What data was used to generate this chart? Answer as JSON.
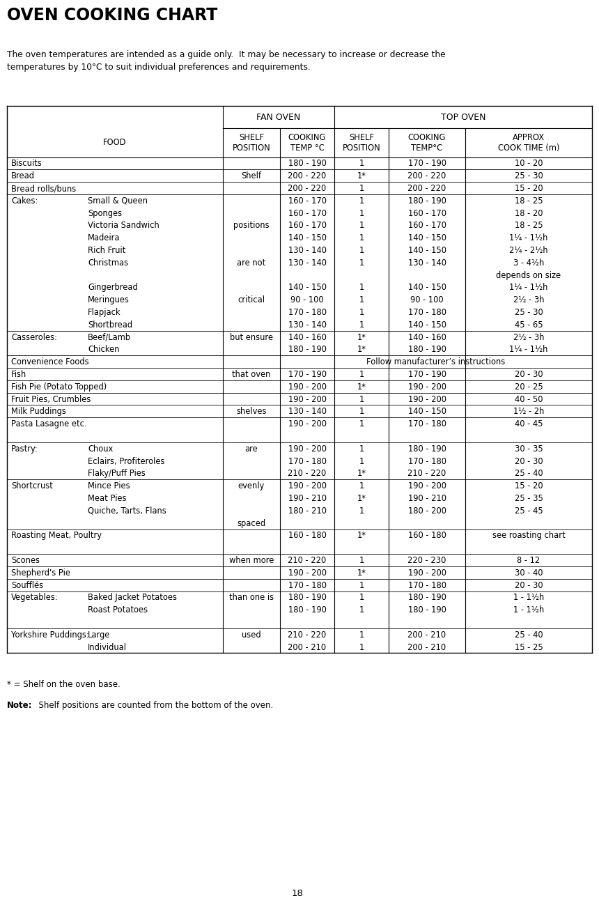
{
  "title": "OVEN COOKING CHART",
  "subtitle_line1": "The oven temperatures are intended as a guide only.  It may be necessary to increase or decrease the",
  "subtitle_line2": "temperatures by 10°C to suit individual preferences and requirements.",
  "footnote1": "* = Shelf on the oven base.",
  "footnote2_bold": "Note:",
  "footnote2_rest": "  Shelf positions are counted from the bottom of the oven.",
  "page_number": "18",
  "rows": [
    [
      "Biscuits",
      "",
      "",
      "180 - 190",
      "1",
      "170 - 190",
      "10 - 20"
    ],
    [
      "Bread",
      "",
      "Shelf",
      "200 - 220",
      "1*",
      "200 - 220",
      "25 - 30"
    ],
    [
      "Bread rolls/buns",
      "",
      "",
      "200 - 220",
      "1",
      "200 - 220",
      "15 - 20"
    ],
    [
      "Cakes:",
      "Small & Queen",
      "",
      "160 - 170",
      "1",
      "180 - 190",
      "18 - 25"
    ],
    [
      "",
      "Sponges",
      "",
      "160 - 170",
      "1",
      "160 - 170",
      "18 - 20"
    ],
    [
      "",
      "Victoria Sandwich",
      "positions",
      "160 - 170",
      "1",
      "160 - 170",
      "18 - 25"
    ],
    [
      "",
      "Madeira",
      "",
      "140 - 150",
      "1",
      "140 - 150",
      "1¼ - 1½h"
    ],
    [
      "",
      "Rich Fruit",
      "",
      "130 - 140",
      "1",
      "140 - 150",
      "2¼ - 2½h"
    ],
    [
      "",
      "Christmas",
      "are not",
      "130 - 140",
      "1",
      "130 - 140",
      "3 - 4½h"
    ],
    [
      "",
      "",
      "",
      "",
      "",
      "",
      "depends on size"
    ],
    [
      "",
      "Gingerbread",
      "",
      "140 - 150",
      "1",
      "140 - 150",
      "1¼ - 1½h"
    ],
    [
      "",
      "Meringues",
      "critical",
      "90 - 100",
      "1",
      "90 - 100",
      "2½ - 3h"
    ],
    [
      "",
      "Flapjack",
      "",
      "170 - 180",
      "1",
      "170 - 180",
      "25 - 30"
    ],
    [
      "",
      "Shortbread",
      "",
      "130 - 140",
      "1",
      "140 - 150",
      "45 - 65"
    ],
    [
      "Casseroles:",
      "Beef/Lamb",
      "but ensure",
      "140 - 160",
      "1*",
      "140 - 160",
      "2½ - 3h"
    ],
    [
      "",
      "Chicken",
      "",
      "180 - 190",
      "1*",
      "180 - 190",
      "1¼ - 1½h"
    ],
    [
      "Convenience Foods",
      "",
      "",
      "SPAN:Follow manufacturer’s instructions",
      "",
      "",
      ""
    ],
    [
      "Fish",
      "",
      "that oven",
      "170 - 190",
      "1",
      "170 - 190",
      "20 - 30"
    ],
    [
      "Fish Pie (Potato Topped)",
      "",
      "",
      "190 - 200",
      "1*",
      "190 - 200",
      "20 - 25"
    ],
    [
      "Fruit Pies, Crumbles",
      "",
      "",
      "190 - 200",
      "1",
      "190 - 200",
      "40 - 50"
    ],
    [
      "Milk Puddings",
      "",
      "shelves",
      "130 - 140",
      "1",
      "140 - 150",
      "1½ - 2h"
    ],
    [
      "Pasta Lasagne etc.",
      "",
      "",
      "190 - 200",
      "1",
      "170 - 180",
      "40 - 45"
    ],
    [
      "",
      "",
      "",
      "",
      "",
      "",
      ""
    ],
    [
      "Pastry:",
      "Choux",
      "are",
      "190 - 200",
      "1",
      "180 - 190",
      "30 - 35"
    ],
    [
      "",
      "Eclairs, Profiteroles",
      "",
      "170 - 180",
      "1",
      "170 - 180",
      "20 - 30"
    ],
    [
      "",
      "Flaky/Puff Pies",
      "",
      "210 - 220",
      "1*",
      "210 - 220",
      "25 - 40"
    ],
    [
      "Shortcrust",
      "Mince Pies",
      "evenly",
      "190 - 200",
      "1",
      "190 - 200",
      "15 - 20"
    ],
    [
      "",
      "Meat Pies",
      "",
      "190 - 210",
      "1*",
      "190 - 210",
      "25 - 35"
    ],
    [
      "",
      "Quiche, Tarts, Flans",
      "",
      "180 - 210",
      "1",
      "180 - 200",
      "25 - 45"
    ],
    [
      "",
      "",
      "spaced",
      "",
      "",
      "",
      ""
    ],
    [
      "Roasting Meat, Poultry",
      "",
      "",
      "160 - 180",
      "1*",
      "160 - 180",
      "see roasting chart"
    ],
    [
      "",
      "",
      "",
      "",
      "",
      "",
      ""
    ],
    [
      "Scones",
      "",
      "when more",
      "210 - 220",
      "1",
      "220 - 230",
      "8 - 12"
    ],
    [
      "Shepherd's Pie",
      "",
      "",
      "190 - 200",
      "1*",
      "190 - 200",
      "30 - 40"
    ],
    [
      "Soufflés",
      "",
      "",
      "170 - 180",
      "1",
      "170 - 180",
      "20 - 30"
    ],
    [
      "Vegetables:",
      "Baked Jacket Potatoes",
      "than one is",
      "180 - 190",
      "1",
      "180 - 190",
      "1 - 1½h"
    ],
    [
      "",
      "Roast Potatoes",
      "",
      "180 - 190",
      "1",
      "180 - 190",
      "1 - 1½h"
    ],
    [
      "",
      "",
      "",
      "",
      "",
      "",
      ""
    ],
    [
      "Yorkshire Puddings:",
      "Large",
      "used",
      "210 - 220",
      "1",
      "200 - 210",
      "25 - 40"
    ],
    [
      "",
      "Individual",
      "",
      "200 - 210",
      "1",
      "200 - 210",
      "15 - 25"
    ]
  ],
  "background_color": "#ffffff",
  "text_color": "#000000"
}
